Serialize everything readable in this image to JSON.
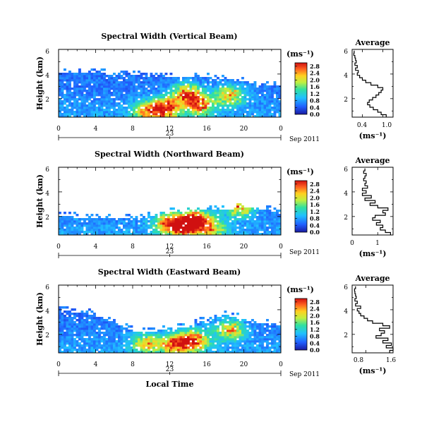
{
  "chart_data": [
    {
      "type": "heatmap",
      "title": "Spectral Width (Vertical Beam)",
      "ylabel": "Height (km)",
      "xlabel": "Local Time",
      "x_ticks": [
        "0",
        "4",
        "8",
        "12",
        "16",
        "20",
        "0"
      ],
      "y_ticks": [
        "2",
        "4",
        "6"
      ],
      "xlim": [
        0,
        24
      ],
      "ylim": [
        0.5,
        6
      ],
      "date_day": "23",
      "date_month": "Sep 2011",
      "colorbar_unit": "(ms⁻¹)",
      "colorbar_ticks": [
        "0.0",
        "0.4",
        "0.8",
        "1.2",
        "1.6",
        "2.0",
        "2.4",
        "2.8"
      ],
      "clim": [
        0,
        3.0
      ],
      "field": {
        "layer_top_km": [
          [
            0,
            4.1
          ],
          [
            3,
            4.1
          ],
          [
            6,
            4.0
          ],
          [
            8,
            3.9
          ],
          [
            10,
            3.8
          ],
          [
            12,
            3.7
          ],
          [
            14,
            3.8
          ],
          [
            16,
            3.7
          ],
          [
            18,
            3.6
          ],
          [
            20,
            3.4
          ],
          [
            22,
            3.2
          ],
          [
            24,
            3.0
          ]
        ],
        "hotspots": [
          [
            11.5,
            1.2,
            2.6
          ],
          [
            13.8,
            2.4,
            2.3
          ],
          [
            15.2,
            1.5,
            2.0
          ],
          [
            18.5,
            2.3,
            1.8
          ],
          [
            9.5,
            1.0,
            1.6
          ]
        ]
      },
      "average": {
        "title": "Average",
        "xlabel": "(ms⁻¹)",
        "x_ticks": [
          "0.4",
          "1.0"
        ],
        "xlim": [
          0.1,
          1.3
        ],
        "y": [
          0.6,
          0.8,
          1.0,
          1.2,
          1.4,
          1.6,
          1.8,
          2.0,
          2.2,
          2.4,
          2.6,
          2.8,
          3.0,
          3.2,
          3.4,
          3.6,
          3.8,
          4.0,
          4.2,
          4.4,
          4.6,
          4.8,
          5.0,
          5.2,
          5.4,
          5.6,
          5.8
        ],
        "x": [
          1.1,
          0.95,
          0.85,
          0.72,
          0.62,
          0.55,
          0.6,
          0.7,
          0.8,
          0.88,
          0.95,
          1.0,
          0.85,
          0.65,
          0.5,
          0.4,
          0.32,
          0.25,
          0.28,
          0.2,
          0.25,
          0.18,
          0.22,
          0.2,
          0.18,
          0.15,
          0.16
        ]
      }
    },
    {
      "type": "heatmap",
      "title": "Spectral Width (Northward Beam)",
      "ylabel": "Height (km)",
      "xlabel": "Local Time",
      "x_ticks": [
        "0",
        "4",
        "8",
        "12",
        "16",
        "20",
        "0"
      ],
      "y_ticks": [
        "2",
        "4",
        "6"
      ],
      "xlim": [
        0,
        24
      ],
      "ylim": [
        0.5,
        6
      ],
      "date_day": "23",
      "date_month": "Sep 2011",
      "colorbar_unit": "(ms⁻¹)",
      "colorbar_ticks": [
        "0.0",
        "0.4",
        "0.8",
        "1.2",
        "1.6",
        "2.0",
        "2.4",
        "2.8"
      ],
      "clim": [
        0,
        3.0
      ],
      "field": {
        "layer_top_km": [
          [
            0,
            2.0
          ],
          [
            4,
            1.9
          ],
          [
            8,
            1.8
          ],
          [
            10,
            2.0
          ],
          [
            12,
            2.3
          ],
          [
            14,
            2.4
          ],
          [
            16,
            2.5
          ],
          [
            18,
            2.6
          ],
          [
            20,
            2.7
          ],
          [
            22,
            2.6
          ],
          [
            24,
            2.3
          ]
        ],
        "hotspots": [
          [
            13.5,
            1.2,
            2.6
          ],
          [
            14.8,
            1.8,
            2.2
          ],
          [
            11.8,
            1.5,
            1.8
          ],
          [
            19.5,
            2.8,
            2.0
          ],
          [
            16.5,
            1.0,
            1.6
          ]
        ]
      },
      "average": {
        "title": "Average",
        "xlabel": "(ms⁻¹)",
        "x_ticks": [
          "0",
          "1"
        ],
        "xlim": [
          0,
          1.6
        ],
        "y": [
          0.6,
          0.8,
          1.0,
          1.2,
          1.4,
          1.6,
          1.8,
          2.0,
          2.2,
          2.4,
          2.6,
          2.8,
          3.0,
          3.2,
          3.4,
          3.6,
          3.8,
          4.0,
          4.2,
          4.4,
          4.6,
          4.8,
          5.0,
          5.2,
          5.4,
          5.6,
          5.8
        ],
        "x": [
          1.5,
          1.3,
          1.1,
          1.2,
          0.95,
          1.1,
          0.8,
          0.9,
          1.3,
          1.2,
          1.4,
          1.0,
          0.7,
          0.9,
          0.5,
          0.75,
          0.4,
          0.55,
          0.4,
          0.6,
          0.5,
          0.55,
          0.45,
          0.5,
          0.55,
          0.45,
          0.5
        ]
      }
    },
    {
      "type": "heatmap",
      "title": "Spectral Width (Eastward Beam)",
      "ylabel": "Height (km)",
      "xlabel": "Local Time",
      "x_ticks": [
        "0",
        "4",
        "8",
        "12",
        "16",
        "20",
        "0"
      ],
      "y_ticks": [
        "2",
        "4",
        "6"
      ],
      "xlim": [
        0,
        24
      ],
      "ylim": [
        0.5,
        6
      ],
      "date_day": "23",
      "date_month": "Sep 2011",
      "colorbar_unit": "(ms⁻¹)",
      "colorbar_ticks": [
        "0.0",
        "0.4",
        "0.8",
        "1.2",
        "1.6",
        "2.0",
        "2.4",
        "2.8"
      ],
      "clim": [
        0,
        3.0
      ],
      "field": {
        "layer_top_km": [
          [
            0,
            3.9
          ],
          [
            3,
            3.8
          ],
          [
            6,
            3.0
          ],
          [
            8,
            2.3
          ],
          [
            10,
            2.2
          ],
          [
            12,
            2.4
          ],
          [
            14,
            2.6
          ],
          [
            16,
            3.2
          ],
          [
            18,
            3.6
          ],
          [
            20,
            3.2
          ],
          [
            22,
            2.9
          ],
          [
            24,
            2.7
          ]
        ],
        "hotspots": [
          [
            14.5,
            1.5,
            2.5
          ],
          [
            12.5,
            1.2,
            2.0
          ],
          [
            18.5,
            2.4,
            1.9
          ],
          [
            9.5,
            1.3,
            1.6
          ]
        ]
      },
      "average": {
        "title": "Average",
        "xlabel": "(ms⁻¹)",
        "x_ticks": [
          "0.8",
          "1.6"
        ],
        "xlim": [
          0.4,
          1.6
        ],
        "y": [
          0.6,
          0.8,
          1.0,
          1.2,
          1.4,
          1.6,
          1.8,
          2.0,
          2.2,
          2.4,
          2.6,
          2.8,
          3.0,
          3.2,
          3.4,
          3.6,
          3.8,
          4.0,
          4.2,
          4.4,
          4.6,
          4.8,
          5.0,
          5.2,
          5.4,
          5.6,
          5.8
        ],
        "x": [
          1.5,
          1.6,
          1.4,
          1.55,
          1.3,
          1.45,
          1.1,
          1.25,
          1.35,
          1.2,
          1.5,
          1.3,
          1.0,
          0.85,
          0.75,
          0.65,
          0.6,
          0.55,
          0.65,
          0.5,
          0.55,
          0.48,
          0.52,
          0.5,
          0.48,
          0.47,
          0.5
        ]
      }
    }
  ]
}
